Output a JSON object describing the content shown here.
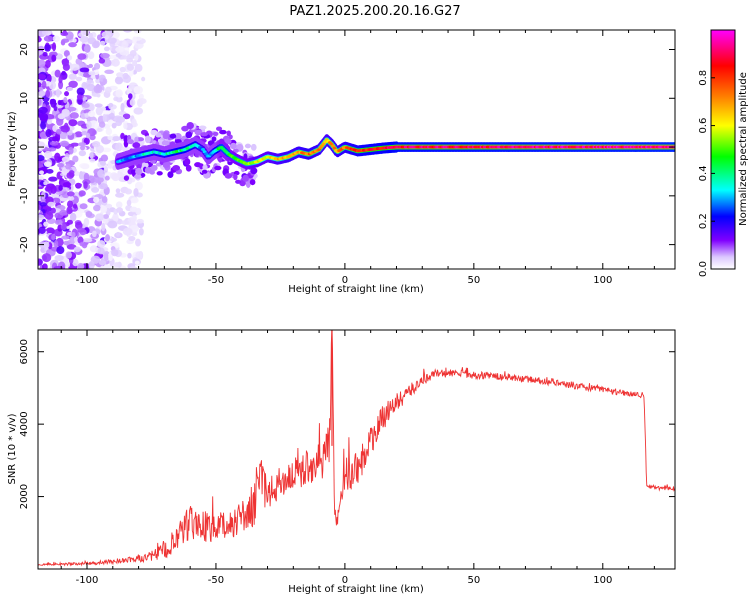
{
  "figure": {
    "title": "PAZ1.2025.200.20.16.G27"
  },
  "chart_data": [
    {
      "type": "heatmap",
      "xlabel": "Height of straight line (km)",
      "ylabel": "Frequency (Hz)",
      "xlim": [
        -119,
        128
      ],
      "ylim": [
        -25,
        24
      ],
      "xticks": [
        -100,
        -50,
        0,
        50,
        100
      ],
      "yticks": [
        -20,
        -10,
        0,
        10,
        20
      ],
      "colorbar": {
        "label": "Normalized spectral amplitude",
        "range": [
          0,
          1
        ],
        "ticks": [
          0.0,
          0.2,
          0.4,
          0.6,
          0.8
        ],
        "colors": [
          "#ffffff",
          "#dcc8ff",
          "#8000ff",
          "#0000ff",
          "#00ffff",
          "#00ff00",
          "#ffff00",
          "#ff8000",
          "#ff0000",
          "#ff00ff"
        ]
      },
      "noise_region_km": [
        -119,
        -83
      ],
      "ridge": {
        "x": [
          -88,
          -82,
          -78,
          -74,
          -70,
          -66,
          -62,
          -58,
          -55,
          -53,
          -51,
          -48,
          -45,
          -42,
          -38,
          -34,
          -30,
          -26,
          -22,
          -18,
          -14,
          -10,
          -7,
          -5,
          -3,
          0,
          5,
          10,
          15,
          20,
          128
        ],
        "y": [
          -3,
          -2,
          -1.5,
          -1,
          -1.5,
          -1,
          -0.5,
          0.5,
          -0.5,
          -2,
          -1,
          0,
          -1.5,
          -2.5,
          -3.5,
          -3,
          -2,
          -2.5,
          -2,
          -1,
          -1.5,
          -0.5,
          1.5,
          0.5,
          -1,
          0,
          -0.8,
          -0.5,
          -0.2,
          0,
          0
        ]
      },
      "ridge_amplitude": [
        0.25,
        0.3,
        0.35,
        0.35,
        0.35,
        0.4,
        0.4,
        0.35,
        0.3,
        0.3,
        0.35,
        0.45,
        0.45,
        0.5,
        0.5,
        0.6,
        0.6,
        0.65,
        0.7,
        0.7,
        0.75,
        0.7,
        0.65,
        0.7,
        0.7,
        0.75,
        0.8,
        0.85,
        0.85,
        0.9,
        0.95
      ]
    },
    {
      "type": "line",
      "xlabel": "Height of straight line (km)",
      "ylabel": "SNR (10 * v/v)",
      "xlim": [
        -119,
        128
      ],
      "ylim": [
        0,
        6600
      ],
      "xticks": [
        -100,
        -50,
        0,
        50,
        100
      ],
      "yticks": [
        2000,
        4000,
        6000
      ],
      "series": [
        {
          "color": "#ee3333",
          "x": [
            -119,
            -100,
            -90,
            -80,
            -75,
            -70,
            -65,
            -60,
            -55,
            -50,
            -45,
            -40,
            -35,
            -33,
            -30,
            -25,
            -20,
            -15,
            -12,
            -10,
            -8,
            -7,
            -6,
            -5,
            -4,
            -2,
            0,
            5,
            10,
            15,
            20,
            25,
            30,
            35,
            40,
            45,
            50,
            55,
            60,
            70,
            80,
            90,
            100,
            110,
            116,
            117,
            120,
            128
          ],
          "y": [
            120,
            150,
            200,
            280,
            350,
            500,
            800,
            1300,
            1200,
            1100,
            1200,
            1450,
            1600,
            2600,
            2000,
            2400,
            2600,
            2800,
            2900,
            3000,
            3000,
            3500,
            3400,
            6600,
            1500,
            1500,
            2600,
            2800,
            3500,
            4200,
            4600,
            4900,
            5200,
            5400,
            5400,
            5400,
            5350,
            5350,
            5300,
            5250,
            5150,
            5050,
            4950,
            4850,
            4800,
            2300,
            2250,
            2200
          ],
          "jitter": [
            30,
            40,
            60,
            90,
            150,
            250,
            400,
            500,
            450,
            400,
            400,
            450,
            500,
            600,
            450,
            450,
            450,
            500,
            500,
            500,
            500,
            600,
            600,
            500,
            300,
            400,
            500,
            500,
            450,
            350,
            250,
            200,
            150,
            120,
            120,
            100,
            100,
            100,
            100,
            90,
            90,
            90,
            90,
            90,
            90,
            60,
            60,
            60
          ]
        }
      ]
    }
  ]
}
